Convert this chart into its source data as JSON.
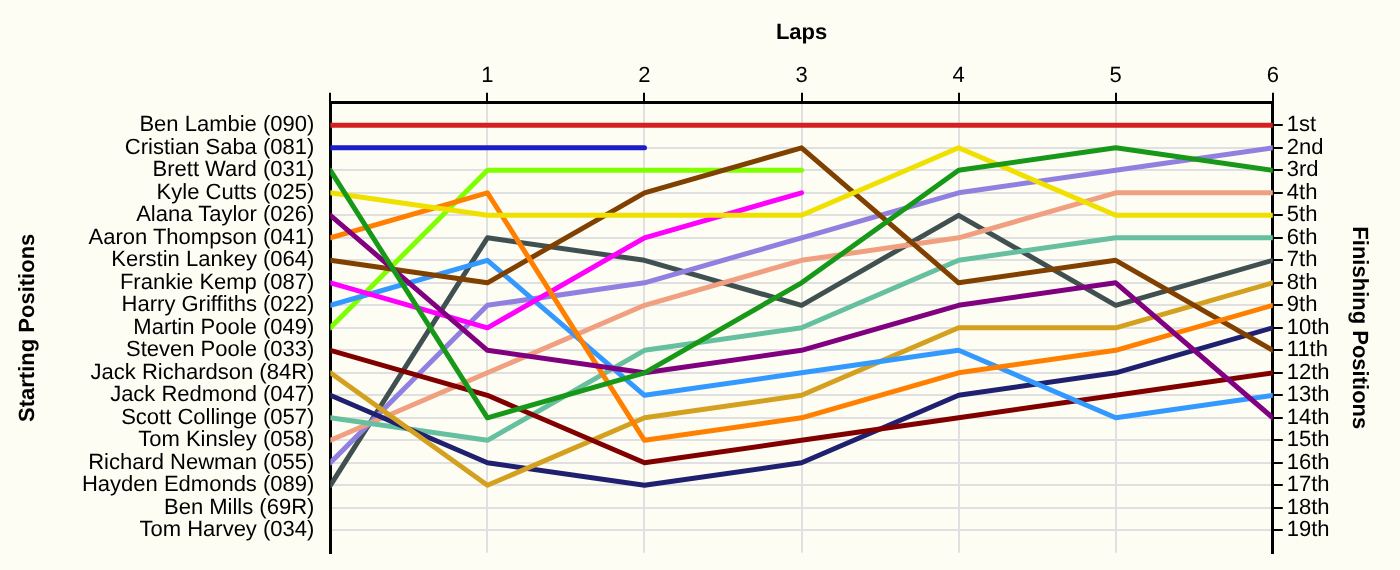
{
  "chart_data": {
    "type": "line",
    "xlabel": "Laps",
    "ylabel": "Finishing Positions",
    "x": [
      0,
      1,
      2,
      3,
      4,
      5,
      6
    ],
    "xlim": [
      0,
      6
    ],
    "xticks": [
      {
        "value": 0,
        "label": null
      },
      1,
      2,
      3,
      4,
      5,
      6
    ],
    "ylim": [
      20,
      0
    ],
    "yticks": [
      {
        "value": 1,
        "label": "1st"
      },
      {
        "value": 2,
        "label": "2nd"
      },
      {
        "value": 3,
        "label": "3rd"
      },
      {
        "value": 4,
        "label": "4th"
      },
      {
        "value": 5,
        "label": "5th"
      },
      {
        "value": 6,
        "label": "6th"
      },
      {
        "value": 7,
        "label": "7th"
      },
      {
        "value": 8,
        "label": "8th"
      },
      {
        "value": 9,
        "label": "9th"
      },
      {
        "value": 10,
        "label": "10th"
      },
      {
        "value": 11,
        "label": "11th"
      },
      {
        "value": 12,
        "label": "12th"
      },
      {
        "value": 13,
        "label": "13th"
      },
      {
        "value": 14,
        "label": "14th"
      },
      {
        "value": 15,
        "label": "15th"
      },
      {
        "value": 16,
        "label": "16th"
      },
      {
        "value": 17,
        "label": "17th"
      },
      {
        "value": 18,
        "label": "18th"
      },
      {
        "value": 19,
        "label": "19th"
      }
    ],
    "annotations": [
      "Ben Lambie (090)",
      "Cristian Saba (081)",
      "Brett Ward (031)",
      "Kyle Cutts (025)",
      "Alana Taylor (026)",
      "Aaron Thompson (041)",
      "Kerstin Lankey (064)",
      "Frankie Kemp (087)",
      "Harry Griffiths (022)",
      "Martin Poole (049)",
      "Steven Poole (033)",
      "Jack Richardson (84R)",
      "Jack Redmond (047)",
      "Scott Collinge (057)",
      "Tom Kinsley (058)",
      "Richard Newman (055)",
      "Hayden Edmonds (089)",
      "Ben Mills (69R)",
      "Tom Harvey (034)",
      "Starting Positions"
    ],
    "grid": true,
    "legend": false,
    "marker": "none",
    "line_style": "solid",
    "series": [
      {
        "color": "#d42020",
        "values": [
          1,
          1,
          1,
          1,
          1,
          1,
          1
        ]
      },
      {
        "color": "#1c1cc8",
        "values": [
          2,
          2,
          2,
          null,
          null,
          null,
          null
        ]
      },
      {
        "color": "#189818",
        "values": [
          3,
          14,
          12,
          8,
          3,
          2,
          3
        ]
      },
      {
        "color": "#f0e000",
        "values": [
          4,
          5,
          5,
          5,
          2,
          5,
          5
        ]
      },
      {
        "color": "#800080",
        "values": [
          5,
          11,
          12,
          11,
          9,
          8,
          14
        ]
      },
      {
        "color": "#ff8000",
        "values": [
          6,
          4,
          15,
          14,
          12,
          11,
          9
        ]
      },
      {
        "color": "#804000",
        "values": [
          7,
          8,
          4,
          2,
          8,
          7,
          11
        ]
      },
      {
        "color": "#ff00ff",
        "values": [
          8,
          10,
          6,
          4,
          null,
          null,
          null
        ]
      },
      {
        "color": "#3399ff",
        "values": [
          9,
          7,
          13,
          12,
          11,
          14,
          13
        ]
      },
      {
        "color": "#80ff00",
        "values": [
          10,
          3,
          3,
          3,
          null,
          null,
          null
        ]
      },
      {
        "color": "#800000",
        "values": [
          11,
          13,
          16,
          15,
          14,
          13,
          12
        ]
      },
      {
        "color": "#d4a020",
        "values": [
          12,
          17,
          14,
          13,
          10,
          10,
          8
        ]
      },
      {
        "color": "#202070",
        "values": [
          13,
          16,
          17,
          16,
          13,
          12,
          10
        ]
      },
      {
        "color": "#66c0a0",
        "values": [
          14,
          15,
          11,
          10,
          7,
          6,
          6
        ]
      },
      {
        "color": "#f0a080",
        "values": [
          15,
          12,
          9,
          7,
          6,
          4,
          4
        ]
      },
      {
        "color": "#9080e0",
        "values": [
          16,
          9,
          8,
          6,
          4,
          3,
          2
        ]
      },
      {
        "color": "#405050",
        "values": [
          17,
          6,
          7,
          9,
          5,
          9,
          7
        ]
      }
    ]
  }
}
